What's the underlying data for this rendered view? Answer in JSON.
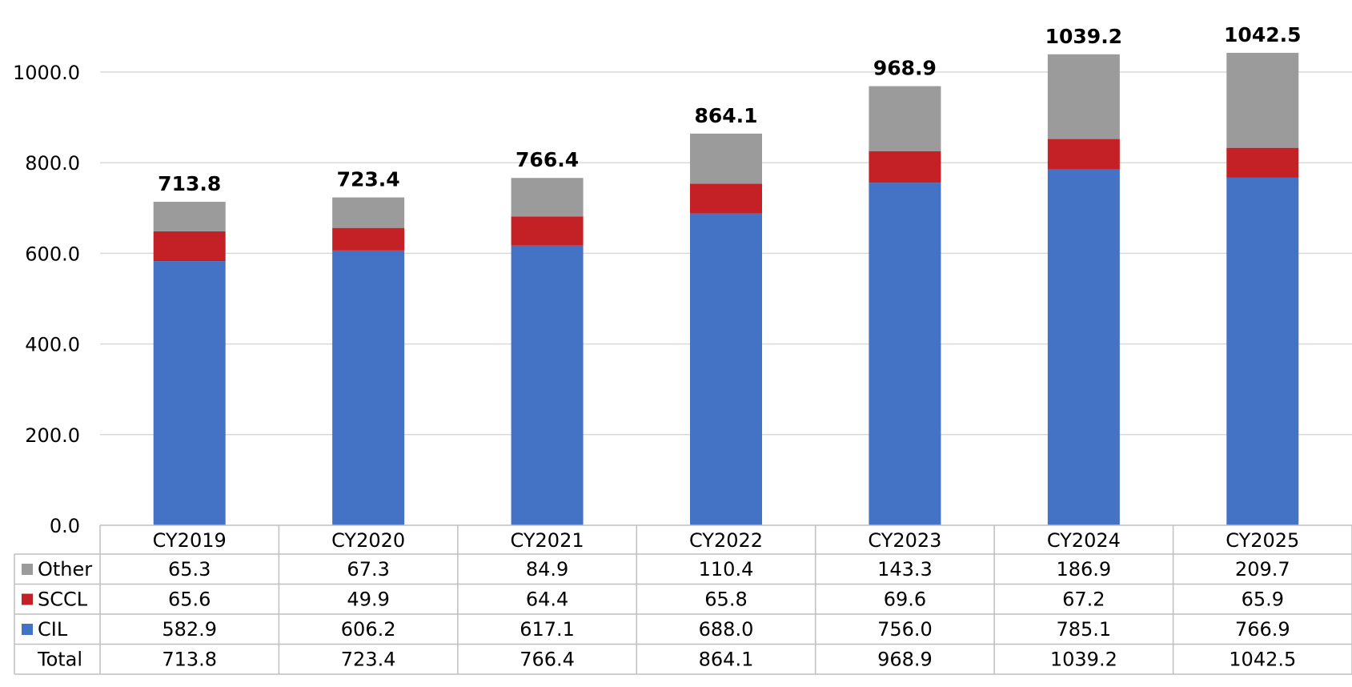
{
  "chart_data": {
    "type": "bar",
    "stacked": true,
    "title": "",
    "xlabel": "",
    "ylabel": "",
    "ylim": [
      0,
      1000
    ],
    "y_ticks": [
      "0.0",
      "200.0",
      "400.0",
      "600.0",
      "800.0",
      "1000.0"
    ],
    "y_tick_values": [
      0,
      200,
      400,
      600,
      800,
      1000
    ],
    "grid": true,
    "legend_placement": "data-table-left",
    "categories": [
      "CY2019",
      "CY2020",
      "CY2021",
      "CY2022",
      "CY2023",
      "CY2024",
      "CY2025"
    ],
    "series": [
      {
        "name": "CIL",
        "color": "#4472c4",
        "values": [
          582.9,
          606.2,
          617.1,
          688.0,
          756.0,
          785.1,
          766.9
        ],
        "labels": [
          "582.9",
          "606.2",
          "617.1",
          "688.0",
          "756.0",
          "785.1",
          "766.9"
        ]
      },
      {
        "name": "SCCL",
        "color": "#c42126",
        "values": [
          65.6,
          49.9,
          64.4,
          65.8,
          69.6,
          67.2,
          65.9
        ],
        "labels": [
          "65.6",
          "49.9",
          "64.4",
          "65.8",
          "69.6",
          "67.2",
          "65.9"
        ]
      },
      {
        "name": "Other",
        "color": "#9b9b9b",
        "values": [
          65.3,
          67.3,
          84.9,
          110.4,
          143.3,
          186.9,
          209.7
        ],
        "labels": [
          "65.3",
          "67.3",
          "84.9",
          "110.4",
          "143.3",
          "186.9",
          "209.7"
        ]
      }
    ],
    "totals": {
      "name": "Total",
      "values": [
        713.8,
        723.4,
        766.4,
        864.1,
        968.9,
        1039.2,
        1042.5
      ],
      "labels": [
        "713.8",
        "723.4",
        "766.4",
        "864.1",
        "968.9",
        "1039.2",
        "1042.5"
      ]
    },
    "table_row_order": [
      "Other",
      "SCCL",
      "CIL",
      "Total"
    ]
  }
}
